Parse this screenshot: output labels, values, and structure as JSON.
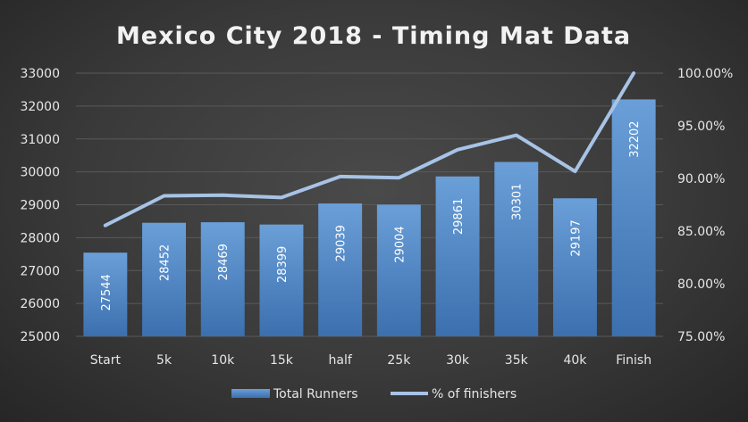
{
  "chart_data": {
    "type": "bar",
    "title": "Mexico City 2018 - Timing Mat Data",
    "categories": [
      "Start",
      "5k",
      "10k",
      "15k",
      "half",
      "25k",
      "30k",
      "35k",
      "40k",
      "Finish"
    ],
    "series": [
      {
        "name": "Total Runners",
        "type": "bar",
        "axis": "left",
        "values": [
          27544,
          28452,
          28469,
          28399,
          29039,
          29004,
          29861,
          30301,
          29197,
          32202
        ],
        "data_labels": [
          "27544",
          "28452",
          "28469",
          "28399",
          "29039",
          "29004",
          "29861",
          "30301",
          "29197",
          "32202"
        ]
      },
      {
        "name": "% of finishers",
        "type": "line",
        "axis": "right",
        "values": [
          0.8553,
          0.8835,
          0.8841,
          0.8819,
          0.9018,
          0.9007,
          0.9273,
          0.941,
          0.9067,
          1.0
        ]
      }
    ],
    "y_left": {
      "min": 25000,
      "max": 33000,
      "ticks": [
        "25000",
        "26000",
        "27000",
        "28000",
        "29000",
        "30000",
        "31000",
        "32000",
        "33000"
      ]
    },
    "y_right": {
      "min": 0.75,
      "max": 1.0,
      "ticks": [
        "75.00%",
        "80.00%",
        "85.00%",
        "90.00%",
        "95.00%",
        "100.00%"
      ]
    },
    "grid": true,
    "legend": "bottom",
    "colors": {
      "bar_top": "#6a9fd8",
      "bar_bottom": "#3b6fae",
      "line": "#a7c3e6",
      "text": "#e6e6e6"
    }
  }
}
